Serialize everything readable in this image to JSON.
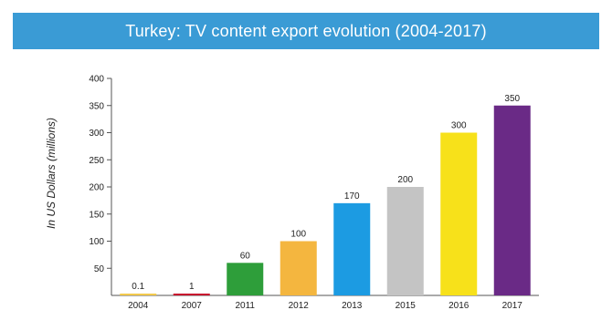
{
  "chart_data": {
    "type": "bar",
    "title": "Turkey: TV content export evolution (2004-2017)",
    "ylabel": "In US Dollars (millions)",
    "xlabel": "",
    "categories": [
      "2004",
      "2007",
      "2011",
      "2012",
      "2013",
      "2015",
      "2016",
      "2017"
    ],
    "values": [
      0.1,
      1,
      60,
      100,
      170,
      200,
      300,
      350
    ],
    "value_labels": [
      "0.1",
      "1",
      "60",
      "100",
      "170",
      "200",
      "300",
      "350"
    ],
    "colors": [
      "#f2c94c",
      "#c8102e",
      "#2e9e3a",
      "#f4b63f",
      "#1c9be2",
      "#c4c4c4",
      "#f7e11a",
      "#6a2a86"
    ],
    "ylim": [
      0,
      400
    ],
    "yticks": [
      "50",
      "100",
      "150",
      "200",
      "250",
      "300",
      "350",
      "400"
    ],
    "ytick_values": [
      50,
      100,
      150,
      200,
      250,
      300,
      350,
      400
    ],
    "grid": false,
    "legend": "none",
    "title_color": "#3a9bd5"
  }
}
